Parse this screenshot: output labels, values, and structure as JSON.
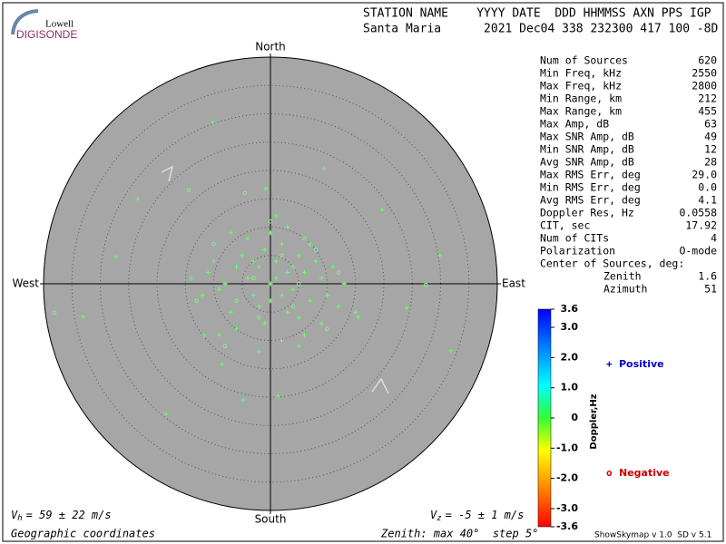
{
  "logo": {
    "top": "Lowell",
    "bottom": "DIGISONDE"
  },
  "header": {
    "columns": "STATION NAME    YYYY DATE  DDD HHMMSS AXN PPS IGP",
    "values": "Santa Maria      2021 Dec04 338 232300 417 100 -8D"
  },
  "stats": [
    {
      "label": "Num of Sources",
      "value": "620"
    },
    {
      "label": "Min Freq, kHz",
      "value": "2550"
    },
    {
      "label": "Max Freq, kHz",
      "value": "2800"
    },
    {
      "label": "Min Range, km",
      "value": "212"
    },
    {
      "label": "Max Range, km",
      "value": "455"
    },
    {
      "label": "Max Amp, dB",
      "value": "63"
    },
    {
      "label": "Max SNR Amp, dB",
      "value": "49"
    },
    {
      "label": "Min SNR Amp, dB",
      "value": "12"
    },
    {
      "label": "Avg SNR Amp, dB",
      "value": "28"
    },
    {
      "label": "Max RMS Err, deg",
      "value": "29.0"
    },
    {
      "label": "Min RMS Err, deg",
      "value": "0.0"
    },
    {
      "label": "Avg RMS Err, deg",
      "value": "4.1"
    },
    {
      "label": "Doppler Res, Hz",
      "value": "0.0558"
    },
    {
      "label": "CIT, sec",
      "value": "17.92"
    },
    {
      "label": "Num of CITs",
      "value": "4"
    },
    {
      "label": "Polarization",
      "value": "O-mode"
    }
  ],
  "center": {
    "label": "Center of Sources, deg:",
    "rows": [
      {
        "label": "Zenith",
        "value": "1.6"
      },
      {
        "label": "Azimuth",
        "value": "51"
      }
    ]
  },
  "footer": {
    "coords": "Geographic coordinates",
    "zenith": "Zenith: max 40°  step 5°",
    "version": "ShowSkymap v 1.0  SD v 5.1"
  },
  "chart_data": {
    "type": "skymap",
    "directions": {
      "north": "North",
      "south": "South",
      "east": "East",
      "west": "West"
    },
    "rlim": [
      0,
      40
    ],
    "rticks": [
      5,
      10,
      15,
      20,
      25,
      30,
      35
    ],
    "vh": {
      "symbol": "V",
      "sub": "h",
      "text": "= 59 ± 22 m/s"
    },
    "vz": {
      "symbol": "V",
      "sub": "z",
      "text": "= -5 ± 1 m/s"
    },
    "series": [
      {
        "name": "Positive",
        "marker": "+",
        "color": "#66ff66",
        "legend_color": "#0000cc",
        "x": [
          -2,
          1,
          3,
          -4,
          5,
          0,
          2,
          -6,
          4,
          -1,
          6,
          -3,
          2,
          -8,
          7,
          1,
          -5,
          3,
          -2,
          9,
          -9,
          0,
          5,
          -7,
          8,
          -1,
          10,
          -11,
          3,
          -4,
          12,
          -12,
          6,
          -6,
          2,
          11,
          -10,
          0,
          4,
          -3,
          7,
          -7,
          13,
          -14,
          1,
          5,
          -2,
          9,
          -9,
          15,
          -10.1,
          -23.4,
          -27.2,
          -33,
          -18.4,
          -4.8,
          1.3,
          19.7,
          29.9,
          31.8,
          24,
          -8.5,
          -0.8,
          9.4,
          15.5,
          -11.7
        ],
        "values": [
          3,
          4,
          2,
          1,
          5,
          0,
          -2,
          3,
          -1,
          6,
          2,
          -2,
          7,
          0,
          -3,
          1,
          5,
          -5,
          -4,
          1,
          -1,
          9,
          -6,
          -5,
          4,
          -7,
          -2,
          2,
          10,
          8,
          -4,
          -2,
          -9,
          -8,
          -10,
          3,
          4,
          -3,
          3,
          4,
          7,
          9,
          0,
          1,
          12,
          -11,
          -12,
          -7,
          -9,
          -5,
          28.5,
          15,
          4.8,
          -5.8,
          -23,
          -20.5,
          -19.8,
          13.1,
          5,
          -11.8,
          -4.3,
          -14.2,
          16.8,
          20.3,
          -5.9,
          -9.1
        ]
      },
      {
        "name": "Negative",
        "marker": "o",
        "color": "#88ee88",
        "legend_color": "#cc0000",
        "x": [
          -38.1,
          27.4,
          -4.5,
          -14.4,
          2,
          -3,
          5,
          -6,
          8,
          -10,
          4,
          0,
          -13,
          12,
          6,
          -2,
          10,
          -8
        ],
        "values": [
          -5.1,
          -0.2,
          16,
          16.5,
          5,
          1,
          0,
          -3,
          6,
          7,
          -4,
          11,
          -3,
          2,
          8,
          -6,
          -8,
          -11
        ]
      }
    ],
    "colorbar": {
      "label": "Doppler,Hz",
      "lim": [
        -3.6,
        3.6
      ],
      "ticks": [
        {
          "value": 3.6,
          "label": "3.6"
        },
        {
          "value": 3,
          "label": "3.0"
        },
        {
          "value": 2,
          "label": "2.0"
        },
        {
          "value": 1,
          "label": "1.0"
        },
        0,
        {
          "value": -1,
          "label": "-1.0"
        },
        {
          "value": -2,
          "label": "-2.0"
        },
        {
          "value": -3,
          "label": "-3.0"
        },
        {
          "value": -3.6,
          "label": "-3.6"
        }
      ]
    }
  }
}
